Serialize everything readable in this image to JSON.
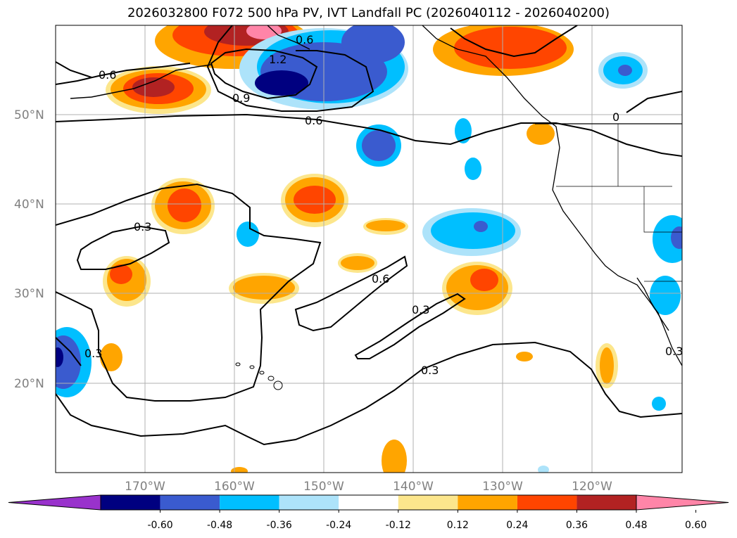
{
  "title": "2026032800 F072 500 hPa PV, IVT Landfall PC (2026040112 - 2026040200)",
  "map": {
    "lat_labels": [
      "50°N",
      "40°N",
      "30°N",
      "20°N"
    ],
    "lon_labels": [
      "170°W",
      "160°W",
      "150°W",
      "140°W",
      "130°W",
      "120°W"
    ],
    "contour_labels": [
      "0.6",
      "1.2",
      "0.9",
      "0.6",
      "0.6",
      "0.3",
      "0.6",
      "0.3",
      "0.3",
      "0.3",
      "0",
      "0.3"
    ]
  },
  "colorbar": {
    "labels": [
      "-0.60",
      "-0.48",
      "-0.36",
      "-0.24",
      "-0.12",
      "0.12",
      "0.24",
      "0.36",
      "0.48",
      "0.60"
    ],
    "colors": [
      "#9932CC",
      "#000080",
      "#3A5BCF",
      "#00BFFF",
      "#ADE3FA",
      "#FFFFFF",
      "#FCE68C",
      "#FFA500",
      "#FF4500",
      "#B22222",
      "#FF85A8"
    ]
  }
}
